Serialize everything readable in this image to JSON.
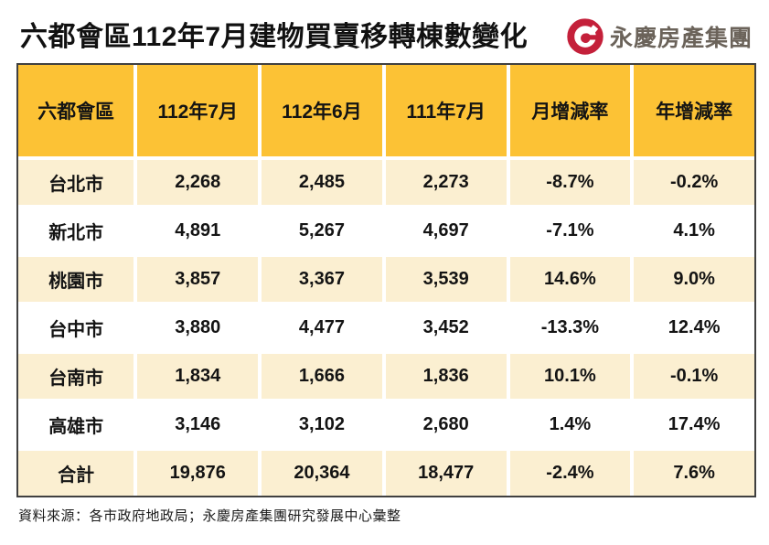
{
  "page": {
    "title": "六都會區112年7月建物買賣移轉棟數變化",
    "logo_text": "永慶房產集團",
    "source_note": "資料來源：各市政府地政局；永慶房產集團研究發展中心彙整"
  },
  "colors": {
    "header_bg": "#FCC235",
    "row_alt_bg": "#FBEFD1",
    "row_bg": "#FFFFFF",
    "table_border": "#404040",
    "logo_red": "#C4203A",
    "logo_gray": "#6B635A",
    "text": "#141414"
  },
  "chart_data": {
    "type": "table",
    "title": "六都會區112年7月建物買賣移轉棟數變化",
    "columns": [
      "六都會區",
      "112年7月",
      "112年6月",
      "111年7月",
      "月增減率",
      "年增減率"
    ],
    "rows": [
      [
        "台北市",
        "2,268",
        "2,485",
        "2,273",
        "-8.7%",
        "-0.2%"
      ],
      [
        "新北市",
        "4,891",
        "5,267",
        "4,697",
        "-7.1%",
        "4.1%"
      ],
      [
        "桃園市",
        "3,857",
        "3,367",
        "3,539",
        "14.6%",
        "9.0%"
      ],
      [
        "台中市",
        "3,880",
        "4,477",
        "3,452",
        "-13.3%",
        "12.4%"
      ],
      [
        "台南市",
        "1,834",
        "1,666",
        "1,836",
        "10.1%",
        "-0.1%"
      ],
      [
        "高雄市",
        "3,146",
        "3,102",
        "2,680",
        "1.4%",
        "17.4%"
      ],
      [
        "合計",
        "19,876",
        "20,364",
        "18,477",
        "-2.4%",
        "7.6%"
      ]
    ]
  }
}
